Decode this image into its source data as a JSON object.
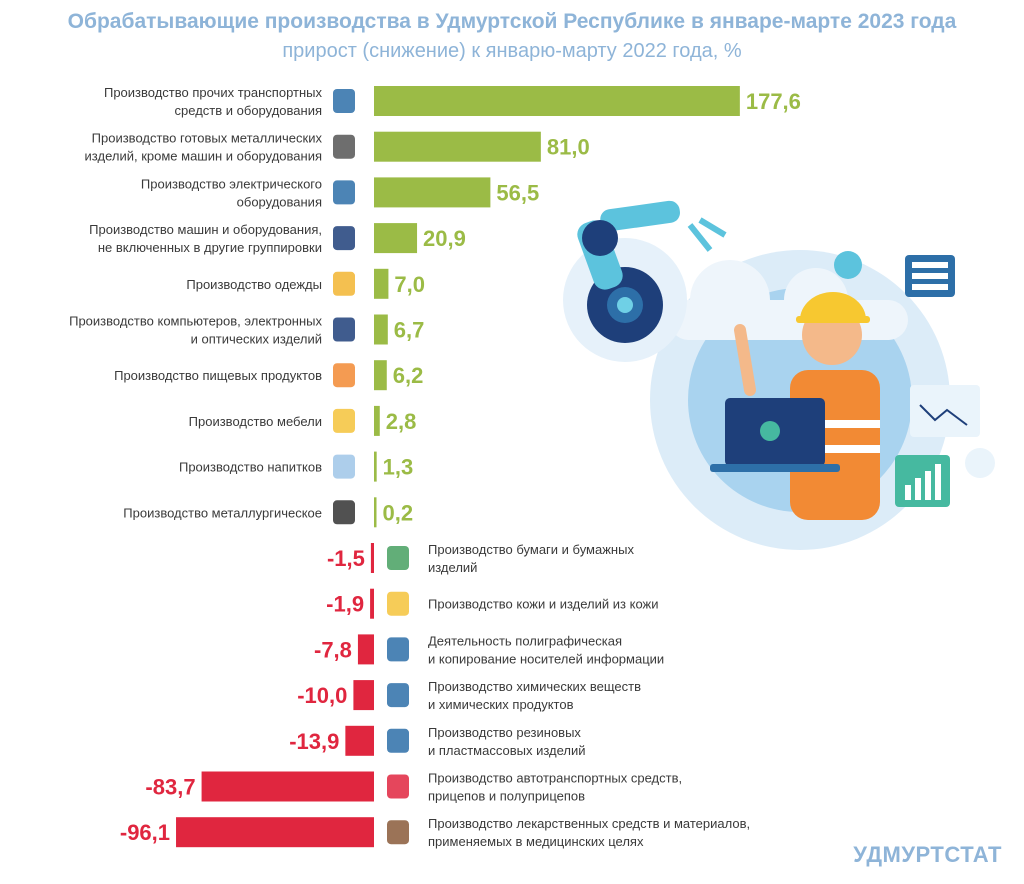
{
  "chart_data": {
    "type": "bar",
    "title": "Обрабатывающие производства в Удмуртской Республике в январе-марте 2023 года",
    "subtitle": "прирост (снижение) к январю-марту 2022 года, %",
    "orientation": "horizontal",
    "positive_color": "#9bbb46",
    "negative_color": "#e0263f",
    "categories": [
      [
        "Производство прочих транспортных",
        "средств и оборудования"
      ],
      [
        "Производство готовых металлических",
        "изделий, кроме машин и оборудования"
      ],
      [
        "Производство электрического",
        "оборудования"
      ],
      [
        "Производство машин и оборудования,",
        "не включенных в другие группировки"
      ],
      [
        "Производство одежды"
      ],
      [
        "Производство компьютеров, электронных",
        "и оптических изделий"
      ],
      [
        "Производство пищевых продуктов"
      ],
      [
        "Производство мебели"
      ],
      [
        "Производство напитков"
      ],
      [
        "Производство металлургическое"
      ],
      [
        "Производство бумаги и бумажных",
        "изделий"
      ],
      [
        "Производство кожи и изделий из кожи"
      ],
      [
        "Деятельность полиграфическая",
        "и копирование носителей информации"
      ],
      [
        "Производство химических веществ",
        "и химических продуктов"
      ],
      [
        "Производство резиновых",
        "и пластмассовых изделий"
      ],
      [
        "Производство автотранспортных средств,",
        "прицепов и полуприцепов"
      ],
      [
        "Производство лекарственных средств и материалов,",
        "применяемых в медицинских целях"
      ]
    ],
    "values": [
      177.6,
      81.0,
      56.5,
      20.9,
      7.0,
      6.7,
      6.2,
      2.8,
      1.3,
      0.2,
      -1.5,
      -1.9,
      -7.8,
      -10.0,
      -13.9,
      -83.7,
      -96.1
    ],
    "value_labels": [
      "177,6",
      "81,0",
      "56,5",
      "20,9",
      "7,0",
      "6,7",
      "6,2",
      "2,8",
      "1,3",
      "0,2",
      "-1,5",
      "-1,9",
      "-7,8",
      "-10,0",
      "-13,9",
      "-83,7",
      "-96,1"
    ],
    "icons": [
      "bicycle-icon",
      "gears-icon",
      "drill-icon",
      "robot-arm-icon",
      "clothes-icon",
      "monitor-icon",
      "ice-cream-icon",
      "cabinet-icon",
      "bottle-icon",
      "ladle-icon",
      "paper-icon",
      "leather-icon",
      "printing-icon",
      "test-tube-icon",
      "boot-icon",
      "car-icon",
      "medicine-icon"
    ]
  },
  "illustration_icon": "worker-with-laptop-illustration",
  "brand": "УДМУРТСТАТ"
}
